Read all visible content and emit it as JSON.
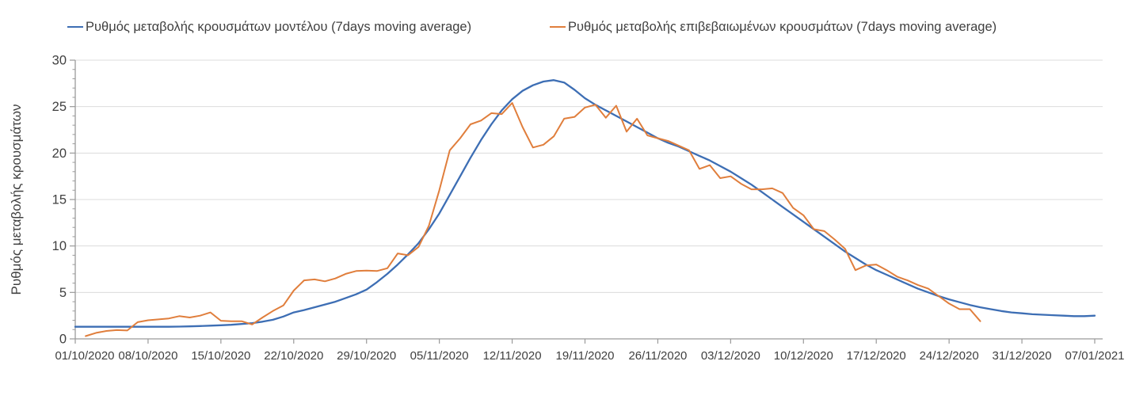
{
  "page": {
    "background": "#ffffff"
  },
  "legend": {
    "items": [
      {
        "label": "Ρυθμός μεταβολής κρουσμάτων μοντέλου (7days moving average)",
        "color": "#3D6EB4"
      },
      {
        "label": "Ρυθμός μεταβολής επιβεβαιωμένων κρουσμάτων (7days moving average)",
        "color": "#E07E3C"
      }
    ]
  },
  "chart_data": {
    "type": "line",
    "title": "",
    "xlabel": "",
    "ylabel": "Ρυθμός μεταβολής κρουσμάτων",
    "ylim": [
      0,
      30
    ],
    "y_ticks": [
      0,
      5,
      10,
      15,
      20,
      25,
      30
    ],
    "y_minor_tick_step": 1,
    "grid": "horizontal",
    "grid_color": "#DCDCDC",
    "axis_color": "#9A9A9A",
    "text_color": "#404040",
    "legend_position": "top",
    "x_tick_labels": [
      "01/10/2020",
      "08/10/2020",
      "15/10/2020",
      "22/10/2020",
      "29/10/2020",
      "05/11/2020",
      "12/11/2020",
      "19/11/2020",
      "26/11/2020",
      "03/12/2020",
      "10/12/2020",
      "17/12/2020",
      "24/12/2020",
      "31/12/2020",
      "07/01/2021"
    ],
    "x_tick_days": [
      0,
      7,
      14,
      21,
      28,
      35,
      42,
      49,
      56,
      63,
      70,
      77,
      84,
      91,
      98
    ],
    "x_range_days": [
      0,
      98
    ],
    "series": [
      {
        "name": "Ρυθμός μεταβολής κρουσμάτων μοντέλου (7days moving average)",
        "color": "#3D6EB4",
        "stroke_width": 2.3,
        "x_step_days": 1,
        "values": [
          1.3,
          1.3,
          1.3,
          1.3,
          1.3,
          1.3,
          1.3,
          1.3,
          1.3,
          1.3,
          1.32,
          1.35,
          1.38,
          1.42,
          1.47,
          1.52,
          1.6,
          1.7,
          1.85,
          2.05,
          2.4,
          2.85,
          3.1,
          3.4,
          3.7,
          4.0,
          4.4,
          4.8,
          5.3,
          6.1,
          7.0,
          8.0,
          9.1,
          10.3,
          11.8,
          13.5,
          15.5,
          17.5,
          19.5,
          21.4,
          23.1,
          24.6,
          25.8,
          26.7,
          27.3,
          27.7,
          27.85,
          27.6,
          26.8,
          25.9,
          25.2,
          24.6,
          24.0,
          23.4,
          22.8,
          22.2,
          21.6,
          21.1,
          20.7,
          20.2,
          19.7,
          19.2,
          18.6,
          18.0,
          17.3,
          16.6,
          15.8,
          15.0,
          14.2,
          13.4,
          12.6,
          11.8,
          11.0,
          10.2,
          9.4,
          8.7,
          8.0,
          7.4,
          6.9,
          6.4,
          5.9,
          5.4,
          5.0,
          4.6,
          4.25,
          3.95,
          3.65,
          3.4,
          3.2,
          3.0,
          2.85,
          2.75,
          2.65,
          2.6,
          2.55,
          2.5,
          2.45,
          2.45,
          2.5
        ]
      },
      {
        "name": "Ρυθμός μεταβολής επιβεβαιωμένων κρουσμάτων (7days moving average)",
        "color": "#E07E3C",
        "stroke_width": 2.0,
        "x_step_days": 1,
        "values": [
          null,
          0.3,
          0.65,
          0.85,
          0.95,
          0.9,
          1.8,
          2.0,
          2.1,
          2.2,
          2.45,
          2.3,
          2.5,
          2.85,
          1.95,
          1.9,
          1.9,
          1.55,
          2.3,
          3.0,
          3.6,
          5.2,
          6.3,
          6.4,
          6.2,
          6.5,
          7.0,
          7.3,
          7.35,
          7.3,
          7.6,
          9.2,
          9.0,
          9.9,
          12.2,
          16.0,
          20.3,
          21.6,
          23.1,
          23.5,
          24.3,
          24.2,
          25.4,
          22.8,
          20.6,
          20.9,
          21.8,
          23.7,
          23.9,
          24.9,
          25.2,
          23.8,
          25.1,
          22.3,
          23.7,
          21.9,
          21.6,
          21.3,
          20.8,
          20.3,
          18.3,
          18.7,
          17.3,
          17.5,
          16.7,
          16.1,
          16.1,
          16.2,
          15.7,
          14.1,
          13.3,
          11.8,
          11.6,
          10.7,
          9.7,
          7.4,
          7.9,
          8.0,
          7.4,
          6.7,
          6.3,
          5.8,
          5.4,
          4.6,
          3.8,
          3.2,
          3.2,
          1.9,
          null,
          null,
          null,
          null,
          null,
          null,
          null,
          null,
          null,
          null,
          null
        ]
      }
    ]
  }
}
